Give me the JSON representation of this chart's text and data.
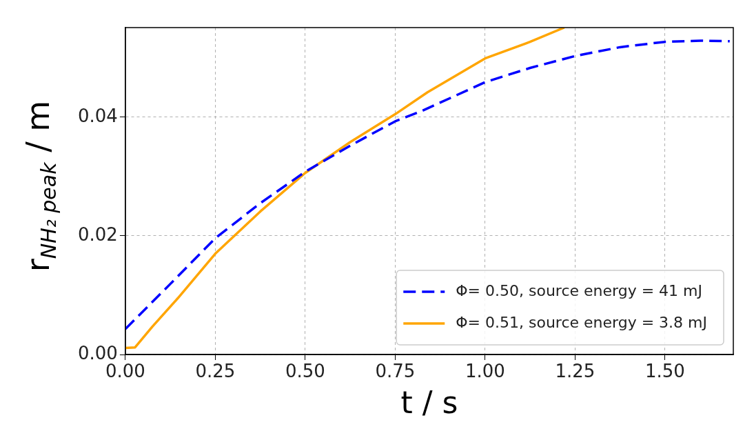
{
  "chart_data": {
    "type": "line",
    "xlabel": "t / s",
    "ylabel": "r$_{NH₂ peak}$ / m",
    "xlim": [
      0,
      1.69
    ],
    "ylim": [
      0,
      0.0551
    ],
    "xticks": [
      {
        "value": 0,
        "label": "0.00"
      },
      {
        "value": 0.25,
        "label": "0.25"
      },
      {
        "value": 0.5,
        "label": "0.50"
      },
      {
        "value": 0.75,
        "label": "0.75"
      },
      {
        "value": 1,
        "label": "1.00"
      },
      {
        "value": 1.25,
        "label": "1.25"
      },
      {
        "value": 1.5,
        "label": "1.50"
      }
    ],
    "yticks": [
      {
        "value": 0,
        "label": "0.00"
      },
      {
        "value": 0.02,
        "label": "0.02"
      },
      {
        "value": 0.04,
        "label": "0.04"
      }
    ],
    "grid": true,
    "legend": "bottom right",
    "marker": "none",
    "series": [
      {
        "name": "Φ= 0.50, source energy = 41 mJ",
        "color": "#0000ff",
        "line_style": "dashed",
        "x": [
          0,
          0.125,
          0.25,
          0.375,
          0.5,
          0.625,
          0.75,
          0.826,
          1,
          1.125,
          1.25,
          1.375,
          1.5,
          1.6,
          1.68
        ],
        "values": [
          0.0043,
          0.0119,
          0.0196,
          0.0255,
          0.0308,
          0.0352,
          0.0393,
          0.0411,
          0.0459,
          0.0483,
          0.0503,
          0.0518,
          0.0527,
          0.0529,
          0.0528
        ]
      },
      {
        "name": "Φ= 0.51, source energy = 3.8 mJ",
        "color": "#ffa500",
        "line_style": "solid",
        "x": [
          0,
          0.027,
          0.075,
          0.146,
          0.25,
          0.375,
          0.5,
          0.625,
          0.75,
          0.84,
          1,
          1.125,
          1.22
        ],
        "values": [
          0.0011,
          0.0012,
          0.0047,
          0.0095,
          0.017,
          0.0241,
          0.0306,
          0.0358,
          0.0405,
          0.0442,
          0.0499,
          0.0527,
          0.0551
        ]
      }
    ]
  }
}
